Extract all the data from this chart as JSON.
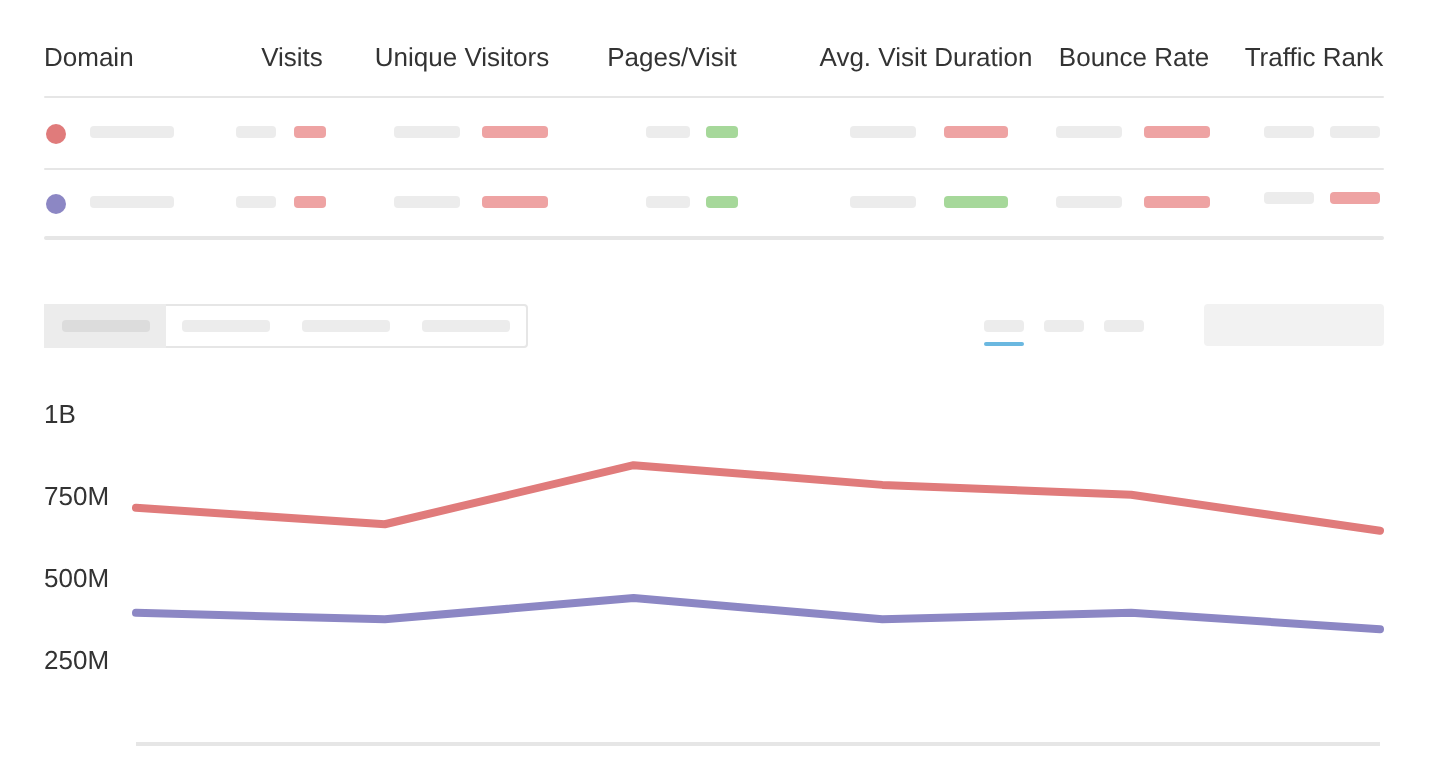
{
  "chart_data": {
    "type": "line",
    "annotations": [
      "Domain",
      "Visits",
      "Unique Visitors",
      "Pages/Visit",
      "Avg. Visit Duration",
      "Bounce Rate",
      "Traffic Rank"
    ],
    "categories": [
      null,
      null,
      null,
      null,
      null,
      null
    ],
    "series": [
      {
        "color": "#e07b7b",
        "values": [
          720000000,
          670000000,
          850000000,
          790000000,
          760000000,
          650000000
        ]
      },
      {
        "color": "#8c87c4",
        "values": [
          400000000,
          380000000,
          445000000,
          380000000,
          400000000,
          350000000
        ]
      }
    ],
    "ylim": [
      0,
      1000000000
    ],
    "yticks": [
      {
        "value": 250000000,
        "label": "250M"
      },
      {
        "value": 500000000,
        "label": "500M"
      },
      {
        "value": 750000000,
        "label": "750M"
      },
      {
        "value": 1000000000,
        "label": "1B"
      }
    ]
  }
}
